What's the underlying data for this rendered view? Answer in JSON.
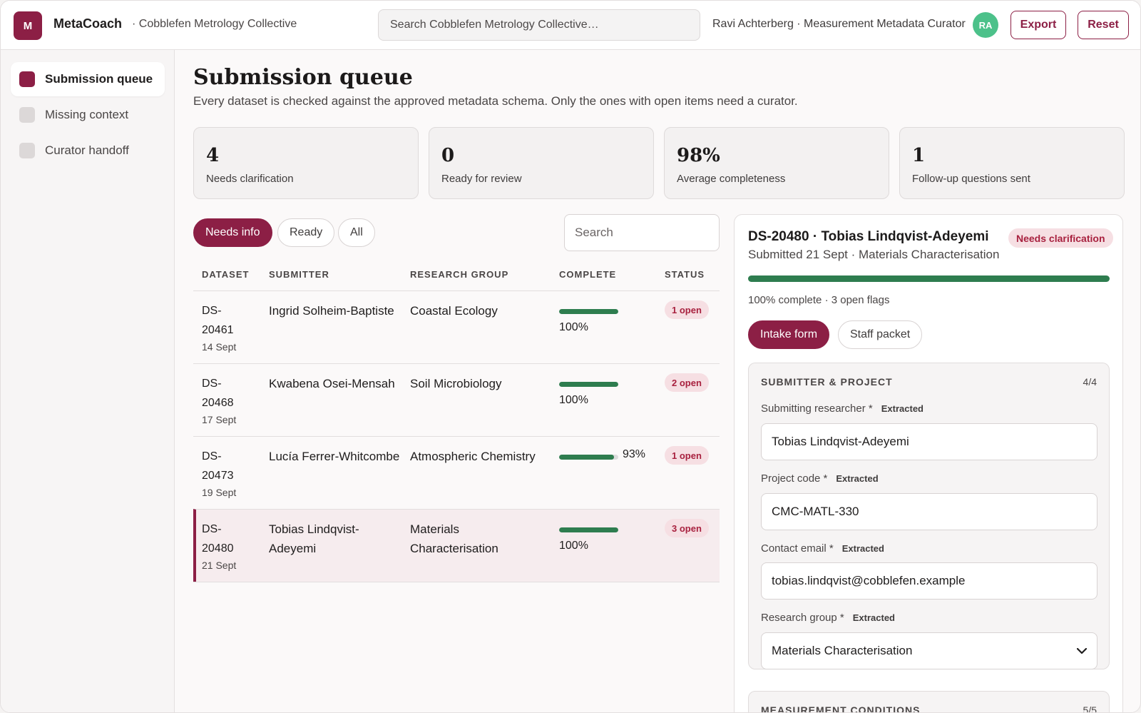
{
  "header": {
    "logo_letter": "M",
    "app_name": "MetaCoach",
    "org": "· Cobblefen Metrology Collective",
    "search_placeholder": "Search Cobblefen Metrology Collective…",
    "user": "Ravi Achterberg · Measurement Metadata Curator",
    "avatar": "RA",
    "export_label": "Export",
    "reset_label": "Reset"
  },
  "sidebar": {
    "items": [
      {
        "label": "Submission queue",
        "active": true
      },
      {
        "label": "Missing context",
        "active": false
      },
      {
        "label": "Curator handoff",
        "active": false
      }
    ]
  },
  "main": {
    "title": "Submission queue",
    "subtitle": "Every dataset is checked against the approved metadata schema. Only the ones with open items need a curator.",
    "stats": [
      {
        "value": "4",
        "label": "Needs clarification"
      },
      {
        "value": "0",
        "label": "Ready for review"
      },
      {
        "value": "98%",
        "label": "Average completeness"
      },
      {
        "value": "1",
        "label": "Follow-up questions sent"
      }
    ],
    "filters": [
      {
        "label": "Needs info",
        "active": true
      },
      {
        "label": "Ready",
        "active": false
      },
      {
        "label": "All",
        "active": false
      }
    ],
    "search_placeholder": "Search",
    "columns": [
      "DATASET",
      "SUBMITTER",
      "RESEARCH GROUP",
      "COMPLETE",
      "STATUS"
    ],
    "rows": [
      {
        "id": "DS-20461",
        "date": "14 Sept",
        "submitter": "Ingrid Solheim-Baptiste",
        "group": "Coastal Ecology",
        "complete": 100,
        "complete_label": "100%",
        "status": "1 open",
        "selected": false
      },
      {
        "id": "DS-20468",
        "date": "17 Sept",
        "submitter": "Kwabena Osei-Mensah",
        "group": "Soil Microbiology",
        "complete": 100,
        "complete_label": "100%",
        "status": "2 open",
        "selected": false
      },
      {
        "id": "DS-20473",
        "date": "19 Sept",
        "submitter": "Lucía Ferrer-Whitcombe",
        "group": "Atmospheric Chemistry",
        "complete": 93,
        "complete_label": "93%",
        "status": "1 open",
        "selected": false
      },
      {
        "id": "DS-20480",
        "date": "21 Sept",
        "submitter": "Tobias Lindqvist-Adeyemi",
        "group": "Materials Characterisation",
        "complete": 100,
        "complete_label": "100%",
        "status": "3 open",
        "selected": true
      }
    ]
  },
  "detail": {
    "title": "DS-20480 · Tobias Lindqvist-Adeyemi",
    "badge": "Needs clarification",
    "subtitle": "Submitted 21 Sept · Materials Characterisation",
    "progress": 100,
    "progress_text": "100% complete · 3 open flags",
    "tabs": [
      {
        "label": "Intake form",
        "active": true
      },
      {
        "label": "Staff packet",
        "active": false
      }
    ],
    "section1": {
      "title": "SUBMITTER & PROJECT",
      "count": "4/4",
      "fields": [
        {
          "label": "Submitting researcher *",
          "tag": "Extracted",
          "value": "Tobias Lindqvist-Adeyemi"
        },
        {
          "label": "Project code *",
          "tag": "Extracted",
          "value": "CMC-MATL-330"
        },
        {
          "label": "Contact email *",
          "tag": "Extracted",
          "value": "tobias.lindqvist@cobblefen.example"
        },
        {
          "label": "Research group *",
          "tag": "Extracted",
          "value": "Materials Characterisation"
        }
      ]
    },
    "section2": {
      "title": "MEASUREMENT CONDITIONS",
      "count": "5/5"
    }
  },
  "colors": {
    "accent": "#8c1f45",
    "progress": "#2e7d4f",
    "badge_bg": "#f6dfe3",
    "avatar": "#4cc18a"
  },
  "icons": {
    "chevron": "chevron-down-icon"
  }
}
